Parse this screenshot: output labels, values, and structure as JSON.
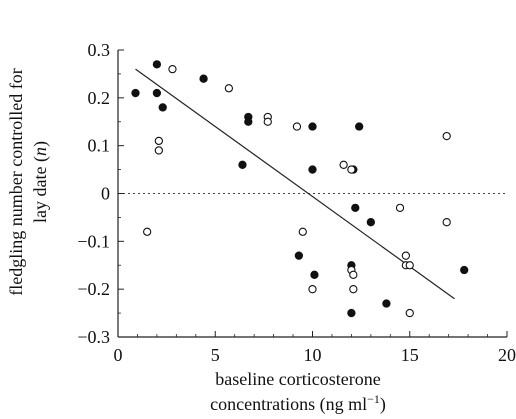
{
  "chart_data": {
    "type": "scatter",
    "xlabel_line1": "baseline corticosterone",
    "xlabel_line2": "concentrations (ng ml",
    "xlabel_sup": "−1",
    "xlabel_close": ")",
    "ylabel_line1": "fledgling number controlled for",
    "ylabel_line2": "lay date (",
    "ylabel_italic": "n",
    "ylabel_close": ")",
    "xlim": [
      0,
      20
    ],
    "ylim": [
      -0.3,
      0.3
    ],
    "x_ticks": [
      0,
      5,
      10,
      15,
      20
    ],
    "x_tick_labels": [
      "0",
      "5",
      "10",
      "15",
      "20"
    ],
    "y_ticks": [
      0.3,
      0.2,
      0.1,
      0,
      -0.1,
      -0.2,
      -0.3
    ],
    "y_tick_labels": [
      "0.3",
      "0.2",
      "0.1",
      "0",
      "−0.1",
      "−0.2",
      "−0.3"
    ],
    "series": [
      {
        "marker": "filled",
        "points": [
          [
            0.9,
            0.21
          ],
          [
            2.0,
            0.27
          ],
          [
            2.0,
            0.21
          ],
          [
            2.3,
            0.18
          ],
          [
            4.4,
            0.24
          ],
          [
            6.4,
            0.06
          ],
          [
            6.7,
            0.16
          ],
          [
            6.7,
            0.15
          ],
          [
            9.3,
            -0.13
          ],
          [
            10.0,
            0.14
          ],
          [
            10.0,
            0.05
          ],
          [
            10.1,
            -0.17
          ],
          [
            12.0,
            -0.15
          ],
          [
            12.0,
            -0.25
          ],
          [
            12.1,
            0.05
          ],
          [
            12.2,
            -0.03
          ],
          [
            12.4,
            0.14
          ],
          [
            13.0,
            -0.06
          ],
          [
            13.8,
            -0.23
          ],
          [
            17.8,
            -0.16
          ]
        ]
      },
      {
        "marker": "open",
        "points": [
          [
            1.5,
            -0.08
          ],
          [
            2.1,
            0.11
          ],
          [
            2.1,
            0.09
          ],
          [
            2.8,
            0.26
          ],
          [
            5.7,
            0.22
          ],
          [
            7.7,
            0.16
          ],
          [
            7.7,
            0.15
          ],
          [
            9.2,
            0.14
          ],
          [
            9.5,
            -0.08
          ],
          [
            10.0,
            -0.2
          ],
          [
            11.6,
            0.06
          ],
          [
            12.0,
            0.05
          ],
          [
            12.0,
            -0.16
          ],
          [
            12.1,
            -0.17
          ],
          [
            12.1,
            -0.2
          ],
          [
            14.5,
            -0.03
          ],
          [
            14.8,
            -0.13
          ],
          [
            14.8,
            -0.15
          ],
          [
            15.0,
            -0.15
          ],
          [
            15.0,
            -0.25
          ],
          [
            16.9,
            0.12
          ],
          [
            16.9,
            -0.06
          ]
        ]
      }
    ],
    "regression_line": {
      "x": [
        0.9,
        17.3
      ],
      "y": [
        0.26,
        -0.22
      ]
    },
    "reference_line_y": 0
  }
}
